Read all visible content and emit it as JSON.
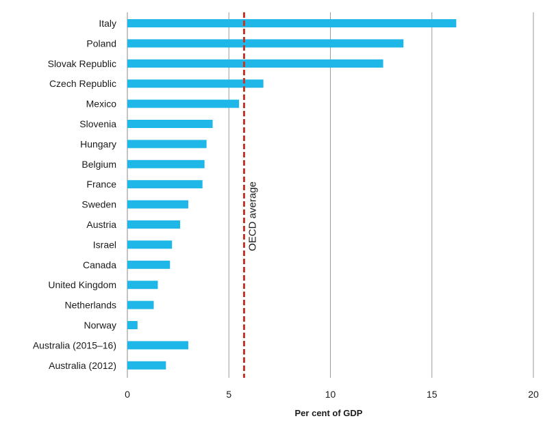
{
  "chart_data": {
    "type": "bar",
    "orientation": "horizontal",
    "categories": [
      "Italy",
      "Poland",
      "Slovak Republic",
      "Czech Republic",
      "Mexico",
      "Slovenia",
      "Hungary",
      "Belgium",
      "France",
      "Sweden",
      "Austria",
      "Israel",
      "Canada",
      "United Kingdom",
      "Netherlands",
      "Norway",
      "Australia (2015–16)",
      "Australia (2012)"
    ],
    "values": [
      16.2,
      13.6,
      12.6,
      6.7,
      5.5,
      4.2,
      3.9,
      3.8,
      3.7,
      3.0,
      2.6,
      2.2,
      2.1,
      1.5,
      1.3,
      0.5,
      3.0,
      1.9
    ],
    "xlabel": "Per cent of GDP",
    "xlim": [
      0,
      20
    ],
    "xticks": [
      0,
      5,
      10,
      15,
      20
    ],
    "grid": true,
    "bar_color": "#1fb6e8",
    "reference_line": {
      "label": "OECD average",
      "value": 5.75,
      "color": "#c0392b",
      "style": "dashed"
    }
  }
}
